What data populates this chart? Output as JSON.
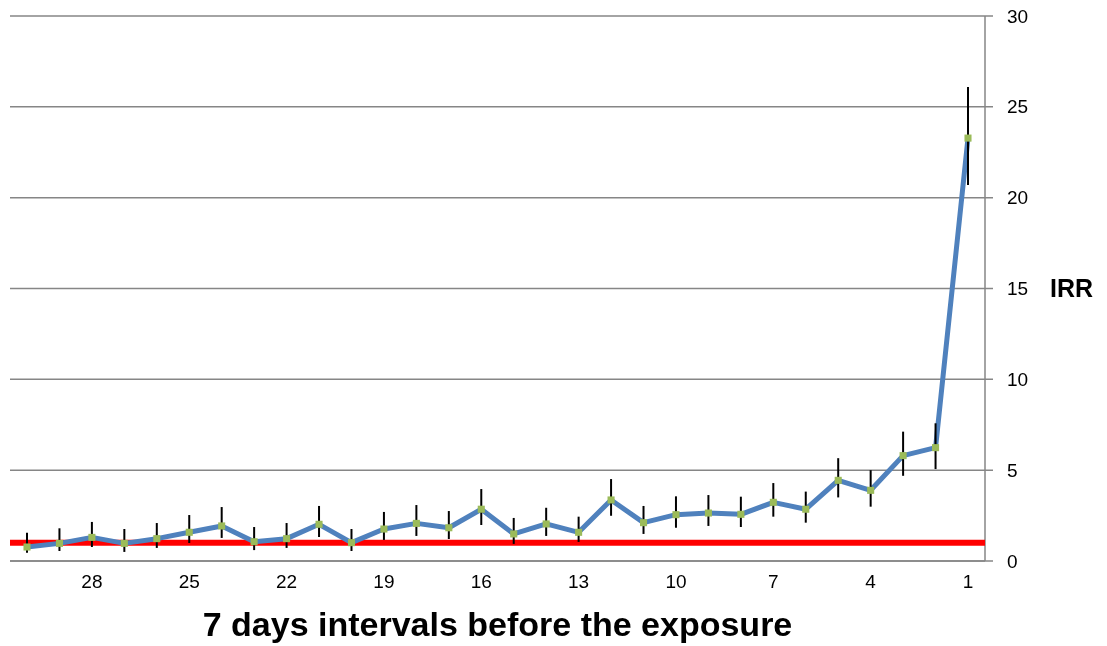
{
  "chart_data": {
    "type": "line",
    "xlabel": "7 days intervals before the exposure",
    "ylabel": "IRR",
    "categories": [
      null,
      null,
      "28",
      null,
      null,
      "25",
      null,
      null,
      "22",
      null,
      null,
      "19",
      null,
      null,
      "16",
      null,
      null,
      "13",
      null,
      null,
      "10",
      null,
      null,
      "7",
      null,
      null,
      "4",
      null,
      null,
      "1"
    ],
    "series": [
      {
        "color": "#4f81bd",
        "values": [
          0.77,
          0.97,
          1.3,
          0.97,
          1.23,
          1.58,
          1.93,
          1.06,
          1.23,
          2.02,
          1.01,
          1.76,
          2.07,
          1.83,
          2.85,
          1.49,
          2.04,
          1.58,
          3.36,
          2.11,
          2.55,
          2.64,
          2.57,
          3.23,
          2.85,
          4.44,
          3.89,
          5.8,
          6.24,
          23.28
        ],
        "errors": [
          [
            0.45,
            1.55
          ],
          [
            0.55,
            1.8
          ],
          [
            0.77,
            2.15
          ],
          [
            0.5,
            1.76
          ],
          [
            0.72,
            2.09
          ],
          [
            0.99,
            2.53
          ],
          [
            1.27,
            2.97
          ],
          [
            0.6,
            1.87
          ],
          [
            0.72,
            2.09
          ],
          [
            1.32,
            3.03
          ],
          [
            0.55,
            1.76
          ],
          [
            1.16,
            2.7
          ],
          [
            1.38,
            3.08
          ],
          [
            1.21,
            2.75
          ],
          [
            1.98,
            3.96
          ],
          [
            0.94,
            2.37
          ],
          [
            1.38,
            2.93
          ],
          [
            1.05,
            2.44
          ],
          [
            2.49,
            4.51
          ],
          [
            1.49,
            3.03
          ],
          [
            1.83,
            3.56
          ],
          [
            1.93,
            3.63
          ],
          [
            1.87,
            3.54
          ],
          [
            2.44,
            4.29
          ],
          [
            2.11,
            3.82
          ],
          [
            3.5,
            5.66
          ],
          [
            2.99,
            5.0
          ],
          [
            4.69,
            7.12
          ],
          [
            5.06,
            7.58
          ],
          [
            20.7,
            26.09
          ]
        ]
      }
    ],
    "ylim": [
      0,
      30
    ],
    "yticks": [
      0,
      5,
      10,
      15,
      20,
      25,
      30
    ],
    "grid": "y",
    "marker": "square",
    "line_style": "solid",
    "ref_lines": [
      {
        "axis": "y",
        "value": 1,
        "color": "#ff0000"
      }
    ]
  }
}
